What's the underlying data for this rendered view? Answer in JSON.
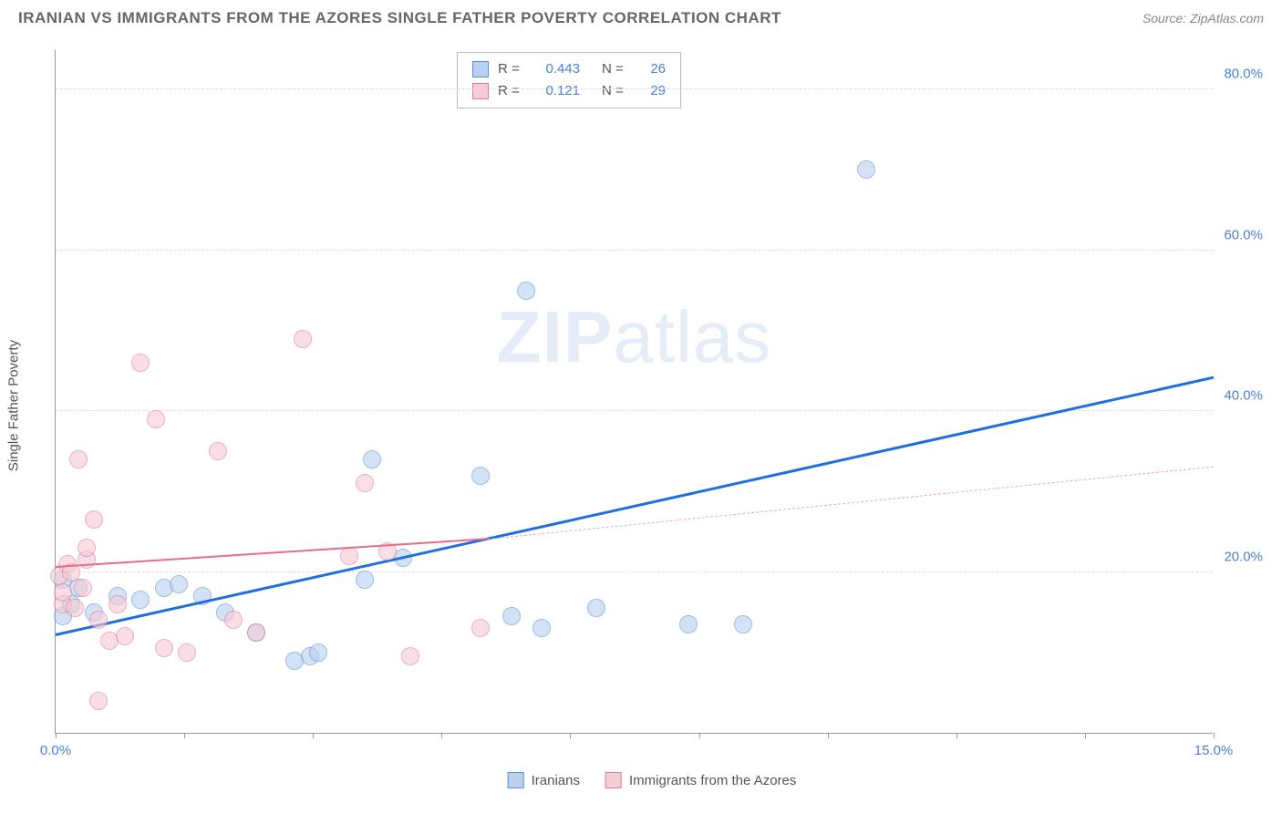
{
  "title": "IRANIAN VS IMMIGRANTS FROM THE AZORES SINGLE FATHER POVERTY CORRELATION CHART",
  "source": "Source: ZipAtlas.com",
  "y_axis_label": "Single Father Poverty",
  "watermark": {
    "bold": "ZIP",
    "thin": "atlas"
  },
  "chart": {
    "type": "scatter",
    "x_min": 0.0,
    "x_max": 15.0,
    "y_min": 0.0,
    "y_max": 85.0,
    "y_ticks": [
      20.0,
      40.0,
      60.0,
      80.0
    ],
    "y_tick_labels": [
      "20.0%",
      "40.0%",
      "60.0%",
      "80.0%"
    ],
    "x_ticks": [
      0.0,
      1.666,
      3.333,
      5.0,
      6.666,
      8.333,
      10.0,
      11.666,
      13.333,
      15.0
    ],
    "x_tick_labels_shown": {
      "0": "0.0%",
      "9": "15.0%"
    },
    "background_color": "#ffffff",
    "grid_color": "#dddddd",
    "axis_color": "#999999",
    "tick_label_color": "#4a7fd8",
    "point_radius": 10,
    "point_opacity": 0.6,
    "series": [
      {
        "name": "Iranians",
        "fill": "#b9d0ef",
        "stroke": "#5b8fd6",
        "trend_color": "#1f6fe0",
        "trend_width": 3,
        "R": "0.443",
        "N": "26",
        "trend": {
          "x1": 0.0,
          "y1": 12.0,
          "x2": 15.0,
          "y2": 44.0
        },
        "points": [
          [
            0.1,
            19.0
          ],
          [
            0.1,
            14.5
          ],
          [
            0.2,
            16.0
          ],
          [
            0.3,
            18.0
          ],
          [
            0.5,
            15.0
          ],
          [
            0.8,
            17.0
          ],
          [
            1.1,
            16.5
          ],
          [
            1.4,
            18.0
          ],
          [
            1.6,
            18.5
          ],
          [
            1.9,
            17.0
          ],
          [
            2.2,
            15.0
          ],
          [
            2.6,
            12.5
          ],
          [
            3.1,
            9.0
          ],
          [
            3.3,
            9.5
          ],
          [
            3.4,
            10.0
          ],
          [
            4.0,
            19.0
          ],
          [
            4.1,
            34.0
          ],
          [
            4.5,
            21.8
          ],
          [
            5.5,
            32.0
          ],
          [
            5.9,
            14.5
          ],
          [
            6.1,
            55.0
          ],
          [
            6.3,
            13.0
          ],
          [
            7.0,
            15.5
          ],
          [
            8.2,
            13.5
          ],
          [
            8.9,
            13.5
          ],
          [
            10.5,
            70.0
          ]
        ]
      },
      {
        "name": "Immigants from the Azores",
        "legend_label": "Immigrants from the Azores",
        "fill": "#f6cbd4",
        "stroke": "#e07a94",
        "trend_color": "#e86b88",
        "trend_width": 2,
        "trend_dash_color": "#e8a8b6",
        "R": "0.121",
        "N": "29",
        "trend_solid": {
          "x1": 0.0,
          "y1": 20.5,
          "x2": 5.6,
          "y2": 24.0
        },
        "trend_dash": {
          "x1": 5.6,
          "y1": 24.0,
          "x2": 15.0,
          "y2": 33.0
        },
        "points": [
          [
            0.05,
            19.5
          ],
          [
            0.1,
            16.0
          ],
          [
            0.1,
            17.5
          ],
          [
            0.15,
            21.0
          ],
          [
            0.2,
            20.0
          ],
          [
            0.25,
            15.5
          ],
          [
            0.3,
            34.0
          ],
          [
            0.35,
            18.0
          ],
          [
            0.4,
            21.5
          ],
          [
            0.4,
            23.0
          ],
          [
            0.5,
            26.5
          ],
          [
            0.55,
            14.0
          ],
          [
            0.55,
            4.0
          ],
          [
            0.7,
            11.5
          ],
          [
            0.8,
            16.0
          ],
          [
            0.9,
            12.0
          ],
          [
            1.1,
            46.0
          ],
          [
            1.3,
            39.0
          ],
          [
            1.4,
            10.5
          ],
          [
            1.7,
            10.0
          ],
          [
            2.1,
            35.0
          ],
          [
            2.3,
            14.0
          ],
          [
            2.6,
            12.5
          ],
          [
            3.2,
            49.0
          ],
          [
            3.8,
            22.0
          ],
          [
            4.0,
            31.0
          ],
          [
            4.3,
            22.5
          ],
          [
            4.6,
            9.5
          ],
          [
            5.5,
            13.0
          ]
        ]
      }
    ]
  },
  "stats_box": {
    "rows": [
      {
        "swatch_fill": "#b9d0ef",
        "swatch_stroke": "#5b8fd6",
        "R_label": "R =",
        "R": "0.443",
        "N_label": "N =",
        "N": "26"
      },
      {
        "swatch_fill": "#f6cbd4",
        "swatch_stroke": "#e07a94",
        "R_label": "R =",
        "R": "0.121",
        "N_label": "N =",
        "N": "29"
      }
    ]
  },
  "legend": {
    "items": [
      {
        "swatch_fill": "#b9d0ef",
        "swatch_stroke": "#5b8fd6",
        "label": "Iranians"
      },
      {
        "swatch_fill": "#f6cbd4",
        "swatch_stroke": "#e07a94",
        "label": "Immigrants from the Azores"
      }
    ]
  }
}
